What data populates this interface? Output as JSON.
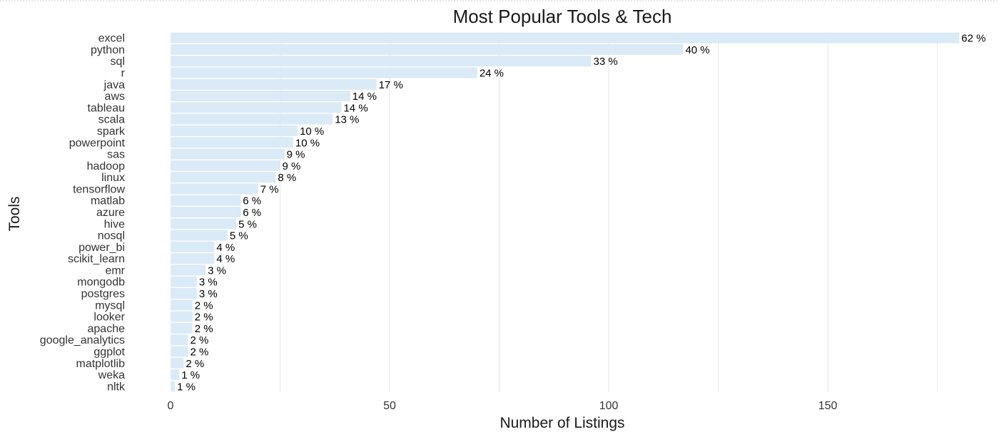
{
  "chart_data": {
    "type": "bar",
    "orientation": "horizontal",
    "title": "Most Popular Tools & Tech",
    "xlabel": "Number of Listings",
    "ylabel": "Tools",
    "xlim": [
      0,
      185
    ],
    "xticks": [
      0,
      50,
      100,
      150
    ],
    "gridlines_x": [
      25,
      50,
      75,
      100,
      125,
      150,
      175
    ],
    "grid": true,
    "bar_color": "#dbeaf7",
    "categories": [
      "excel",
      "python",
      "sql",
      "r",
      "java",
      "aws",
      "tableau",
      "scala",
      "spark",
      "powerpoint",
      "sas",
      "hadoop",
      "linux",
      "tensorflow",
      "matlab",
      "azure",
      "hive",
      "nosql",
      "power_bi",
      "scikit_learn",
      "emr",
      "mongodb",
      "postgres",
      "mysql",
      "looker",
      "apache",
      "google_analytics",
      "ggplot",
      "matplotlib",
      "weka",
      "nltk"
    ],
    "values": [
      180,
      117,
      96,
      70,
      47,
      41,
      39,
      37,
      29,
      28,
      26,
      25,
      24,
      20,
      16,
      16,
      15,
      13,
      10,
      10,
      8,
      6,
      6,
      5,
      5,
      5,
      4,
      4,
      3,
      2,
      1
    ],
    "data_labels": [
      "62 %",
      "40 %",
      "33 %",
      "24 %",
      "17 %",
      "14 %",
      "14 %",
      "13 %",
      "10 %",
      "10 %",
      "9 %",
      "9 %",
      "8 %",
      "7 %",
      "6 %",
      "6 %",
      "5 %",
      "5 %",
      "4 %",
      "4 %",
      "3 %",
      "3 %",
      "3 %",
      "2 %",
      "2 %",
      "2 %",
      "2 %",
      "2 %",
      "2 %",
      "1 %",
      "1 %"
    ]
  }
}
